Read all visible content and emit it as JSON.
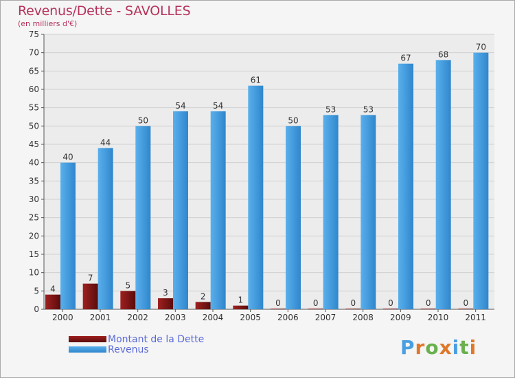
{
  "chart_data": {
    "type": "bar",
    "title": "Revenus/Dette - SAVOLLES",
    "subtitle": "(en milliers d'€)",
    "categories": [
      "2000",
      "2001",
      "2002",
      "2003",
      "2004",
      "2005",
      "2006",
      "2007",
      "2008",
      "2009",
      "2010",
      "2011"
    ],
    "series": [
      {
        "name": "Montant de la Dette",
        "color": "#8b1a1a",
        "values": [
          4,
          7,
          5,
          3,
          2,
          1,
          0,
          0,
          0,
          0,
          0,
          0
        ]
      },
      {
        "name": "Revenus",
        "color": "#4a9fe0",
        "values": [
          40,
          44,
          50,
          54,
          54,
          61,
          50,
          53,
          53,
          67,
          68,
          70
        ]
      }
    ],
    "ylim": [
      0,
      75
    ],
    "yticks": [
      0,
      5,
      10,
      15,
      20,
      25,
      30,
      35,
      40,
      45,
      50,
      55,
      60,
      65,
      70,
      75
    ],
    "grid": true,
    "legend": "bottom-left"
  },
  "logo": {
    "letters": [
      {
        "ch": "P",
        "color": "#4a9fe0"
      },
      {
        "ch": "r",
        "color": "#e0782a"
      },
      {
        "ch": "o",
        "color": "#6ab04c"
      },
      {
        "ch": "x",
        "color": "#e0782a"
      },
      {
        "ch": "i",
        "color": "#4a9fe0"
      },
      {
        "ch": "t",
        "color": "#6ab04c"
      },
      {
        "ch": "i",
        "color": "#e0782a"
      }
    ]
  }
}
